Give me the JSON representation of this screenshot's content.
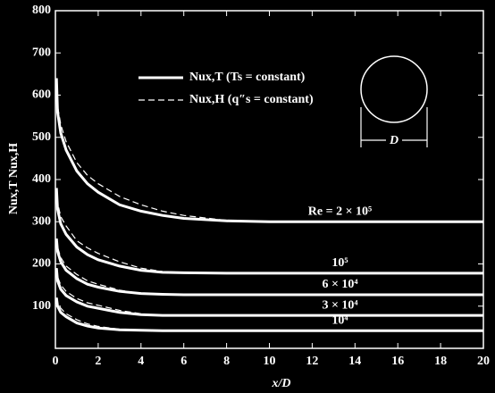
{
  "chart_data": {
    "type": "line",
    "x_label": "x/D",
    "y_label": "Nux,T Nux,H",
    "xlim": [
      0,
      20
    ],
    "xticks": [
      0,
      2,
      4,
      6,
      8,
      10,
      12,
      14,
      16,
      18,
      20
    ],
    "ylim": [
      0,
      800
    ],
    "yticks": [
      100,
      200,
      300,
      400,
      500,
      600,
      700,
      800
    ],
    "color": "#ffffff",
    "legend": [
      {
        "name": "Nux,T (Ts = constant)",
        "dashed": false
      },
      {
        "name": "Nux,H (q″s = constant)",
        "dashed": true
      }
    ],
    "diagram_label": "D",
    "x": [
      0.05,
      0.1,
      0.25,
      0.5,
      1,
      1.5,
      2,
      3,
      4,
      5,
      6,
      8,
      10,
      20
    ],
    "series": [
      {
        "name": "Re = 2 × 10⁵",
        "values": [
          640,
          560,
          510,
          470,
          420,
          390,
          370,
          340,
          325,
          315,
          308,
          302,
          300,
          300
        ],
        "values_h": [
          640,
          575,
          530,
          490,
          440,
          410,
          390,
          360,
          340,
          325,
          315,
          303,
          300,
          null
        ]
      },
      {
        "name": "10⁵",
        "values": [
          380,
          330,
          295,
          270,
          240,
          222,
          210,
          195,
          185,
          180,
          179,
          178,
          178,
          178
        ],
        "values_h": [
          380,
          345,
          312,
          290,
          255,
          238,
          225,
          205,
          190,
          182,
          180,
          null,
          null,
          null
        ]
      },
      {
        "name": "6 × 10⁴",
        "values": [
          260,
          230,
          205,
          185,
          165,
          152,
          145,
          135,
          130,
          128,
          127,
          127,
          127,
          127
        ],
        "values_h": [
          260,
          240,
          215,
          195,
          175,
          160,
          152,
          138,
          130,
          null,
          null,
          null,
          null,
          null
        ]
      },
      {
        "name": "3 × 10⁴",
        "values": [
          190,
          160,
          140,
          125,
          110,
          100,
          95,
          85,
          80,
          78,
          78,
          78,
          78,
          78
        ],
        "values_h": [
          190,
          170,
          150,
          135,
          118,
          108,
          102,
          90,
          82,
          null,
          null,
          null,
          null,
          null
        ]
      },
      {
        "name": "10⁴",
        "values": [
          120,
          100,
          85,
          75,
          60,
          53,
          48,
          44,
          43,
          42,
          42,
          42,
          42,
          42
        ],
        "values_h": [
          120,
          108,
          95,
          82,
          68,
          58,
          52,
          45,
          null,
          null,
          null,
          null,
          null,
          null
        ]
      }
    ]
  }
}
